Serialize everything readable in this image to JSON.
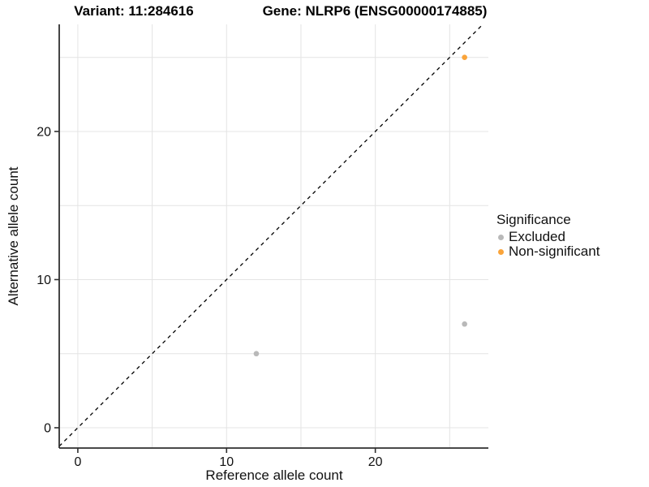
{
  "titles": {
    "left": "Variant: 11:284616",
    "right": "Gene: NLRP6 (ENSG00000174885)"
  },
  "chart_data": {
    "type": "scatter",
    "xlabel": "Reference allele count",
    "ylabel": "Alternative allele count",
    "x_ticks": [
      0,
      10,
      20
    ],
    "y_ticks": [
      0,
      10,
      20
    ],
    "grid_values": [
      0,
      5,
      10,
      15,
      20,
      25
    ],
    "xlim": [
      -1.25,
      27.6
    ],
    "ylim": [
      -1.37,
      27.23
    ],
    "grid": true,
    "identity_line": {
      "style": "dashed",
      "slope": 1,
      "intercept": 0
    },
    "series": [
      {
        "name": "Excluded",
        "color": "#B9B9B9",
        "points": [
          [
            12,
            5
          ],
          [
            26,
            7
          ]
        ]
      },
      {
        "name": "Non-significant",
        "color": "#FAA43A",
        "points": [
          [
            26,
            25
          ]
        ]
      }
    ],
    "legend": {
      "title": "Significance",
      "position": "right"
    }
  },
  "colors": {
    "grid": "#E4E4E4",
    "axis_line": "#2F2F2F",
    "tick_text": "#111111",
    "identity_line": "#000000"
  }
}
